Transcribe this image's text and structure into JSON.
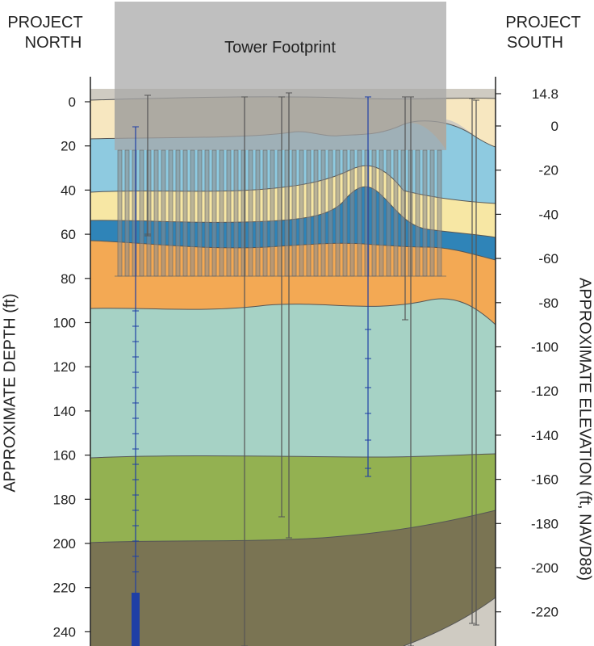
{
  "header": {
    "left_label_line1": "PROJECT",
    "left_label_line2": "NORTH",
    "right_label_line1": "PROJECT",
    "right_label_line2": "SOUTH",
    "footprint_label": "Tower Footprint"
  },
  "left_axis": {
    "title": "APPROXIMATE DEPTH (ft)",
    "unit": "ft",
    "ticks": [
      "0",
      "20",
      "40",
      "60",
      "80",
      "100",
      "120",
      "140",
      "160",
      "180",
      "200",
      "220",
      "240"
    ]
  },
  "right_axis": {
    "title": "APPROXIMATE ELEVATION (ft, NAVD88)",
    "ticks": [
      "14.8",
      "0",
      "-20",
      "-40",
      "-60",
      "-80",
      "-100",
      "-120",
      "-140",
      "-160",
      "-180",
      "-200",
      "-220"
    ]
  },
  "colors": {
    "footprint": "#a6a6a6",
    "layer_1": "#f7e7c0",
    "layer_2": "#bdb297",
    "layer_3": "#8ecae0",
    "layer_4": "#f7e7a4",
    "layer_5": "#2f84b8",
    "layer_6": "#f3a954",
    "layer_7": "#a6d2c5",
    "layer_8": "#93b151",
    "layer_9": "#7a7453",
    "layer_10": "#cfcbc2",
    "boring_blue": "#1f3fa5",
    "boring_gray": "#555555"
  }
}
